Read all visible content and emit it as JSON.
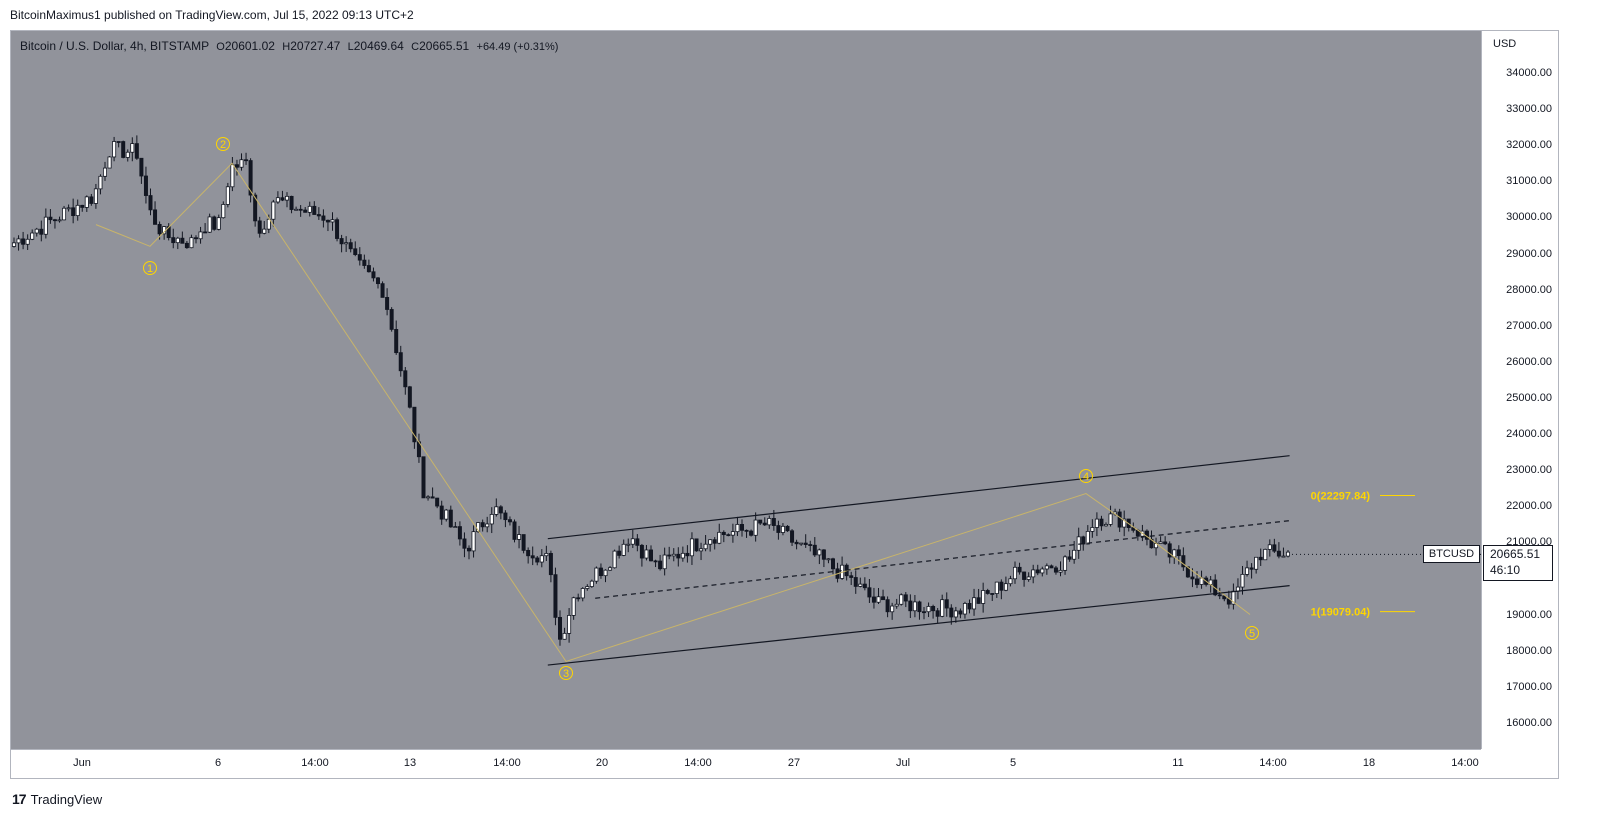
{
  "header": {
    "published_text": "BitcoinMaximus1 published on TradingView.com, Jul 15, 2022 09:13 UTC+2"
  },
  "legend": {
    "title": "Bitcoin / U.S. Dollar, 4h, BITSTAMP",
    "o_label": "O",
    "o_value": "20601.02",
    "h_label": "H",
    "h_value": "20727.47",
    "l_label": "L",
    "l_value": "20469.64",
    "c_label": "C",
    "c_value": "20665.51",
    "change": "+64.49 (+0.31%)"
  },
  "price_axis": {
    "currency": "USD",
    "ticks": [
      "34000.00",
      "33000.00",
      "32000.00",
      "31000.00",
      "30000.00",
      "29000.00",
      "28000.00",
      "27000.00",
      "26000.00",
      "25000.00",
      "24000.00",
      "23000.00",
      "22000.00",
      "21000.00",
      "20000.00",
      "19000.00",
      "18000.00",
      "17000.00",
      "16000.00"
    ]
  },
  "time_axis": {
    "ticks": [
      "Jun",
      "6",
      "14:00",
      "13",
      "14:00",
      "20",
      "14:00",
      "27",
      "Jul",
      "5",
      "11",
      "14:00",
      "18",
      "14:00"
    ]
  },
  "last_price": {
    "symbol": "BTCUSD",
    "price": "20665.51",
    "countdown": "46:10"
  },
  "footer": {
    "logo": "17",
    "brand": "TradingView"
  },
  "colors": {
    "plot_bg": "#91939b",
    "candle": "#131722",
    "annotation": "#ffd600",
    "wave_line": "#c8b46a"
  },
  "chart_data": {
    "type": "candlestick",
    "title": "Bitcoin / U.S. Dollar, 4h, BITSTAMP",
    "ylim": [
      15400,
      34900
    ],
    "y_scale": "linear",
    "anchor_prices": [
      [
        "Jun 1",
        29300
      ],
      [
        "Jun 1",
        30600
      ],
      [
        "Jun 2",
        31900
      ],
      [
        "Jun 3",
        31800
      ],
      [
        "Jun 3",
        30200
      ],
      [
        "Jun 4",
        29500
      ],
      [
        "Jun 5",
        29300
      ],
      [
        "Jun 5",
        29800
      ],
      [
        "Jun 6",
        29800
      ],
      [
        "Jun 6",
        31400
      ],
      [
        "Jun 7",
        31500
      ],
      [
        "Jun 7",
        29500
      ],
      [
        "Jun 8",
        30500
      ],
      [
        "Jun 9",
        30200
      ],
      [
        "Jun 10",
        30000
      ],
      [
        "Jun 11",
        28700
      ],
      [
        "Jun 12",
        28000
      ],
      [
        "Jun 12",
        26500
      ],
      [
        "Jun 13",
        24500
      ],
      [
        "Jun 13",
        22500
      ],
      [
        "Jun 14",
        22000
      ],
      [
        "Jun 15",
        20800
      ],
      [
        "Jun 16",
        22000
      ],
      [
        "Jun 17",
        21000
      ],
      [
        "Jun 18",
        20500
      ],
      [
        "Jun 18",
        18300
      ],
      [
        "Jun 19",
        19600
      ],
      [
        "Jun 20",
        20300
      ],
      [
        "Jun 21",
        21200
      ],
      [
        "Jun 22",
        20300
      ],
      [
        "Jun 23",
        20800
      ],
      [
        "Jun 24",
        21200
      ],
      [
        "Jun 25",
        21300
      ],
      [
        "Jun 26",
        21500
      ],
      [
        "Jun 27",
        21000
      ],
      [
        "Jun 28",
        20500
      ],
      [
        "Jun 29",
        20000
      ],
      [
        "Jun 30",
        19300
      ],
      [
        "Jul 1",
        19300
      ],
      [
        "Jul 2",
        19200
      ],
      [
        "Jul 3",
        19150
      ],
      [
        "Jul 4",
        19500
      ],
      [
        "Jul 5",
        20100
      ],
      [
        "Jul 6",
        20300
      ],
      [
        "Jul 7",
        20500
      ],
      [
        "Jul 8",
        21700
      ],
      [
        "Jul 9",
        21650
      ],
      [
        "Jul 10",
        21000
      ],
      [
        "Jul 11",
        20500
      ],
      [
        "Jul 12",
        19800
      ],
      [
        "Jul 13",
        19400
      ],
      [
        "Jul 13",
        20100
      ],
      [
        "Jul 14",
        20700
      ]
    ],
    "wave_labels": [
      {
        "label": "1",
        "date": "Jun 4",
        "price": 29200
      },
      {
        "label": "2",
        "date": "Jun 6",
        "price": 31700
      },
      {
        "label": "3",
        "date": "Jun 18",
        "price": 17600
      },
      {
        "label": "4",
        "date": "Jul 8",
        "price": 22400
      },
      {
        "label": "5",
        "date": "Jul 13",
        "price": 18850
      }
    ],
    "channel": {
      "upper": [
        [
          "Jun 18",
          21100
        ],
        [
          "Jul 15",
          23400
        ]
      ],
      "lower": [
        [
          "Jun 18",
          17600
        ],
        [
          "Jul 15",
          19800
        ]
      ],
      "middle": [
        [
          "Jun 19",
          19450
        ],
        [
          "Jul 15",
          21600
        ]
      ]
    },
    "fibonacci": [
      {
        "level": "0",
        "price": 22297.84,
        "label": "0(22297.84)"
      },
      {
        "level": "1",
        "price": 19079.04,
        "label": "1(19079.04)"
      }
    ]
  }
}
